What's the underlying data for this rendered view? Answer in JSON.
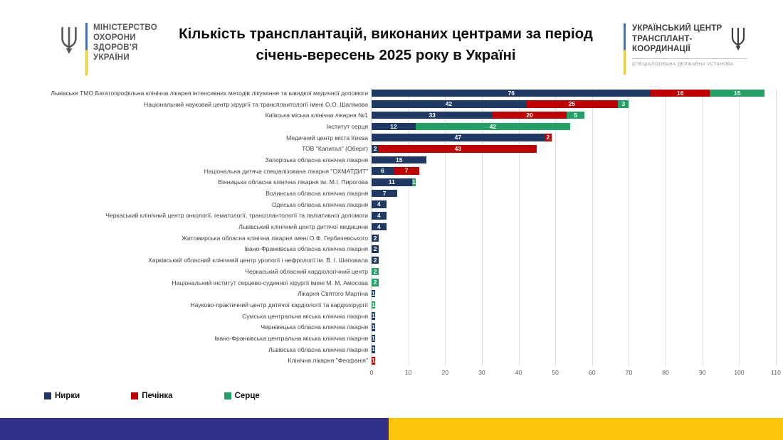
{
  "header": {
    "moh_logo": {
      "line1": "МІНІСТЕРСТВО",
      "line2": "ОХОРОНИ",
      "line3": "ЗДОРОВ'Я",
      "line4": "УКРАЇНИ"
    },
    "title_line1": "Кількість трансплантацій, виконаних центрами за період",
    "title_line2": "січень-вересень 2025 року в Україні",
    "uctc_logo": {
      "line1": "УКРАЇНСЬКИЙ ЦЕНТР",
      "line2": "ТРАНСПЛАНТ-",
      "line3": "КООРДИНАЦІЇ",
      "subtitle": "СПЕЦІАЛІЗОВАНА ДЕРЖАВНА УСТАНОВА"
    }
  },
  "chart_data": {
    "type": "bar",
    "orientation": "horizontal",
    "stacked": true,
    "title": "Кількість трансплантацій, виконаних центрами за період січень-вересень 2025 року в Україні",
    "xlabel": "",
    "ylabel": "",
    "xlim": [
      0,
      110
    ],
    "xticks": [
      0,
      10,
      20,
      30,
      40,
      50,
      60,
      70,
      80,
      90,
      100,
      110
    ],
    "grid": true,
    "legend_position": "bottom",
    "categories": [
      "Львівське ТМО Багатопрофільна клінічна лікарня інтенсивних методів лікування та швидкої медичної допомоги",
      "Національний науковий центр хірургії та трансплантології імені О.О. Шалімова",
      "Київська міська клінічна лікарня №1",
      "Інститут серця",
      "Медичний центр міста Києва",
      "ТОВ \"Капитал\" (Оберіг)",
      "Запорізька обласна клінічна лікарня",
      "Національна дитяча спеціалізована лікарня \"ОХМАТДИТ\"",
      "Вінницька обласна клінічна лікарня ім. М.І. Пирогова",
      "Волинська обласна клінічна лікарня",
      "Одеська обласна клінічна лікарня",
      "Черкаський клінічний центр онкології, гематології, трансплантології та паліативної допомоги",
      "Львівський клінічний центр дитячої медицини",
      "Житомирська обласна клінічна лікарня імені О.Ф. Гербачевського",
      "Івано-Франківська обласна клінічна лікарня",
      "Харківський обласний клінічний центр урології і нефрології ім. В. І. Шаповала",
      "Черкаський обласний кардіологічний центр",
      "Національний інститут серцево-судинної хірургії імені М. М. Амосова",
      "Лікарня Святого Мартіна",
      "Науково-практичний центр дитячої кардіології та кардіохірургії",
      "Сумська центральна міська клінічна лікарня",
      "Чернівецька обласна клінічна лікарня",
      "Івано-Франківська центральна міська клінічна лікарня",
      "Львівська обласна клінічна лікарня",
      "Клінічна лікарня \"Феофанія\""
    ],
    "series": [
      {
        "name": "Нирки",
        "color": "#1f3864",
        "values": [
          76,
          42,
          33,
          12,
          47,
          2,
          15,
          6,
          11,
          7,
          4,
          4,
          4,
          2,
          2,
          2,
          0,
          0,
          1,
          0,
          1,
          1,
          1,
          1,
          0
        ]
      },
      {
        "name": "Печінка",
        "color": "#c00000",
        "values": [
          16,
          25,
          20,
          0,
          2,
          43,
          0,
          7,
          0,
          0,
          0,
          0,
          0,
          0,
          0,
          0,
          0,
          0,
          0,
          0,
          0,
          0,
          0,
          0,
          1
        ]
      },
      {
        "name": "Серце",
        "color": "#23a164",
        "values": [
          15,
          3,
          5,
          42,
          0,
          0,
          0,
          0,
          1,
          0,
          0,
          0,
          0,
          0,
          0,
          0,
          2,
          2,
          0,
          1,
          0,
          0,
          0,
          0,
          0
        ]
      }
    ]
  },
  "colors": {
    "kidney": "#1f3864",
    "liver": "#c00000",
    "heart": "#23a164",
    "footer_blue": "#33308b",
    "footer_yellow": "#fdc60b"
  }
}
